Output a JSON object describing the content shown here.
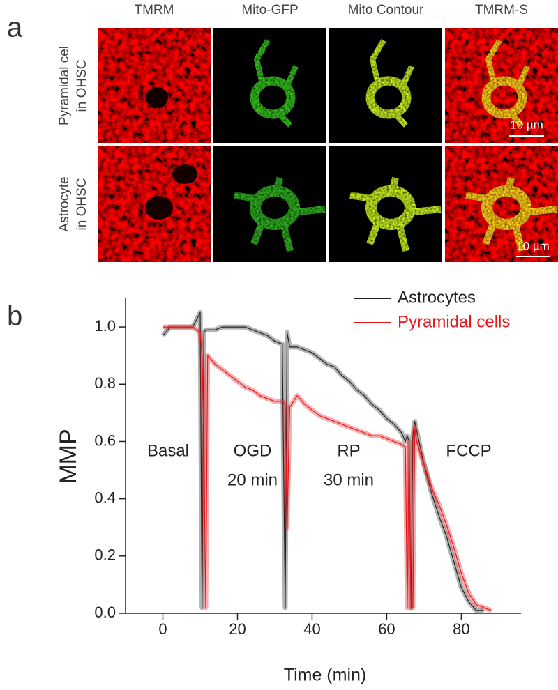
{
  "panel_a": {
    "label": "a",
    "columns": [
      "TMRM",
      "Mito-GFP",
      "Mito Contour",
      "TMRM-S"
    ],
    "rows": [
      [
        "Pyramidal cel",
        "in OHSC"
      ],
      [
        "Astrocyte",
        "in OHSC"
      ]
    ],
    "scale_bars": [
      "10 µm",
      "10 µm"
    ]
  },
  "chart_data": {
    "type": "line",
    "panel_label": "b",
    "x_label": "Time (min)",
    "y_label": "MMP",
    "annotations": [
      "Basal",
      "OGD",
      "20 min",
      "RP",
      "30 min",
      "FCCP"
    ],
    "xlim": [
      -10,
      96
    ],
    "ylim": [
      0,
      1.1
    ],
    "xticks": [
      0,
      20,
      40,
      60,
      80
    ],
    "yticks": [
      {
        "value": 0,
        "label": "0.0"
      },
      {
        "value": 0.2,
        "label": "0.2"
      },
      {
        "value": 0.4,
        "label": "0.4"
      },
      {
        "value": 0.6,
        "label": "0.6"
      },
      {
        "value": 0.8,
        "label": "0.8"
      },
      {
        "value": 1,
        "label": "1.0"
      }
    ],
    "legend": "upper right",
    "x": [
      0,
      2,
      4,
      6,
      8,
      10,
      10.5,
      11,
      11.5,
      12,
      14,
      16,
      18,
      20,
      22,
      24,
      26,
      28,
      30,
      32,
      32.8,
      33.3,
      34,
      36,
      38,
      40,
      42,
      44,
      46,
      48,
      50,
      52,
      54,
      56,
      58,
      60,
      62,
      64,
      65,
      65.5,
      66,
      66.5,
      67,
      67.5,
      68,
      70,
      72,
      74,
      76,
      78,
      80,
      82,
      84,
      86,
      88
    ],
    "series": [
      {
        "name": "Astrocytes",
        "color": "#222222",
        "values": [
          0.97,
          1.0,
          1.0,
          1.0,
          1.0,
          1.05,
          0.02,
          0.98,
          0.99,
          0.99,
          0.99,
          1.0,
          1.0,
          1.0,
          1.0,
          0.99,
          0.98,
          0.97,
          0.95,
          0.94,
          0.02,
          0.98,
          0.93,
          0.93,
          0.92,
          0.91,
          0.89,
          0.87,
          0.86,
          0.83,
          0.81,
          0.78,
          0.76,
          0.73,
          0.71,
          0.68,
          0.66,
          0.63,
          0.6,
          0.62,
          0.6,
          0.02,
          0.62,
          0.67,
          0.64,
          0.52,
          0.42,
          0.34,
          0.27,
          0.18,
          0.09,
          0.04,
          0.01,
          0.01,
          null
        ]
      },
      {
        "name": "Pyramidal cells",
        "color": "#e8161b",
        "values": [
          1.0,
          1.0,
          1.0,
          1.0,
          1.0,
          0.98,
          0.9,
          0.6,
          0.02,
          0.9,
          0.87,
          0.85,
          0.83,
          0.81,
          0.79,
          0.78,
          0.76,
          0.75,
          0.74,
          0.74,
          0.73,
          0.3,
          0.72,
          0.76,
          0.73,
          0.71,
          0.69,
          0.68,
          0.67,
          0.66,
          0.65,
          0.64,
          0.63,
          0.62,
          0.62,
          0.61,
          0.6,
          0.59,
          0.58,
          0.02,
          0.6,
          0.02,
          0.02,
          0.65,
          0.6,
          0.52,
          0.44,
          0.38,
          0.31,
          0.23,
          0.14,
          0.07,
          0.03,
          0.02,
          0.01
        ]
      }
    ]
  }
}
